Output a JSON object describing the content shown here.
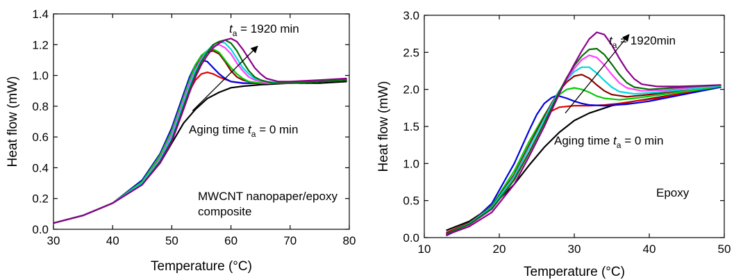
{
  "chart_data": [
    {
      "type": "line",
      "xlabel": "Temperature (°C)",
      "ylabel": "Heat flow (mW)",
      "xlim": [
        30,
        80
      ],
      "ylim": [
        0,
        1.4
      ],
      "xticks": [
        "30",
        "40",
        "50",
        "60",
        "70",
        "80"
      ],
      "yticks": [
        "0.0",
        "0.2",
        "0.4",
        "0.6",
        "0.8",
        "1.0",
        "1.2",
        "1.4"
      ],
      "grid": false,
      "legend": "none",
      "annotations": {
        "top": {
          "prefix": "",
          "italic": "t",
          "sub": "a",
          "suffix": " = 1920 min"
        },
        "bottom": {
          "prefix": "Aging time ",
          "italic": "t",
          "sub": "a",
          "suffix": " = 0 min"
        },
        "label_line1": "MWCNT nanopaper/epoxy",
        "label_line2": "composite"
      },
      "arrow": {
        "from": [
          53.5,
          0.77
        ],
        "to": [
          64.5,
          1.19
        ]
      },
      "series": [
        {
          "color": "#000000",
          "x": [
            30,
            35,
            40,
            45,
            48,
            50,
            52,
            54,
            56,
            58,
            60,
            62,
            65,
            70,
            75,
            79.5
          ],
          "y": [
            0.04,
            0.09,
            0.17,
            0.3,
            0.43,
            0.56,
            0.69,
            0.78,
            0.85,
            0.89,
            0.92,
            0.93,
            0.94,
            0.95,
            0.95,
            0.96
          ]
        },
        {
          "color": "#e00000",
          "x": [
            30,
            35,
            40,
            45,
            48,
            50,
            52,
            53,
            54,
            55,
            56,
            57,
            58,
            60,
            62,
            65,
            70,
            75,
            79.5
          ],
          "y": [
            0.04,
            0.09,
            0.17,
            0.31,
            0.46,
            0.61,
            0.8,
            0.9,
            0.97,
            1.01,
            1.02,
            1.01,
            0.99,
            0.96,
            0.95,
            0.95,
            0.95,
            0.96,
            0.97
          ]
        },
        {
          "color": "#0000e0",
          "x": [
            30,
            35,
            40,
            45,
            48,
            50,
            52,
            53,
            54,
            55,
            56,
            57,
            58,
            59,
            60,
            62,
            64,
            65,
            70,
            75,
            79.5
          ],
          "y": [
            0.04,
            0.09,
            0.17,
            0.32,
            0.49,
            0.66,
            0.88,
            0.99,
            1.07,
            1.1,
            1.09,
            1.05,
            1.01,
            0.98,
            0.96,
            0.95,
            0.95,
            0.95,
            0.95,
            0.96,
            0.97
          ]
        },
        {
          "color": "#8b0000",
          "x": [
            30,
            35,
            40,
            45,
            48,
            50,
            52,
            53,
            54,
            55,
            56,
            57,
            58,
            59,
            60,
            61,
            62,
            64,
            66,
            70,
            75,
            79.5
          ],
          "y": [
            0.04,
            0.09,
            0.17,
            0.31,
            0.48,
            0.64,
            0.86,
            0.97,
            1.06,
            1.12,
            1.15,
            1.16,
            1.14,
            1.09,
            1.03,
            0.99,
            0.97,
            0.95,
            0.95,
            0.95,
            0.96,
            0.97
          ]
        },
        {
          "color": "#00cc00",
          "x": [
            30,
            35,
            40,
            45,
            48,
            50,
            52,
            53,
            54,
            55,
            56,
            57,
            58,
            59,
            60,
            61,
            62,
            63,
            65,
            66,
            70,
            75,
            79.5
          ],
          "y": [
            0.04,
            0.09,
            0.17,
            0.31,
            0.48,
            0.64,
            0.86,
            0.97,
            1.07,
            1.13,
            1.16,
            1.17,
            1.15,
            1.1,
            1.05,
            1.01,
            0.98,
            0.96,
            0.95,
            0.95,
            0.95,
            0.96,
            0.97
          ]
        },
        {
          "color": "#ff40ff",
          "x": [
            30,
            35,
            40,
            45,
            48,
            50,
            52,
            53,
            54,
            55,
            56,
            57,
            58,
            59,
            60,
            61,
            62,
            63,
            64,
            66,
            70,
            75,
            79.5
          ],
          "y": [
            0.04,
            0.09,
            0.17,
            0.3,
            0.46,
            0.62,
            0.84,
            0.95,
            1.04,
            1.11,
            1.16,
            1.19,
            1.2,
            1.18,
            1.14,
            1.08,
            1.03,
            0.99,
            0.97,
            0.95,
            0.95,
            0.96,
            0.97
          ]
        },
        {
          "color": "#00d8e0",
          "x": [
            30,
            35,
            40,
            45,
            48,
            50,
            52,
            53,
            54,
            55,
            56,
            57,
            58,
            59,
            60,
            61,
            62,
            63,
            64,
            66,
            70,
            75,
            79.5
          ],
          "y": [
            0.04,
            0.09,
            0.17,
            0.3,
            0.45,
            0.6,
            0.82,
            0.93,
            1.03,
            1.1,
            1.16,
            1.2,
            1.22,
            1.21,
            1.17,
            1.11,
            1.05,
            1.01,
            0.98,
            0.96,
            0.95,
            0.96,
            0.97
          ]
        },
        {
          "color": "#007000",
          "x": [
            30,
            35,
            40,
            45,
            48,
            50,
            52,
            53,
            54,
            55,
            56,
            57,
            58,
            59,
            60,
            61,
            62,
            63,
            64,
            65,
            67,
            70,
            75,
            79.5
          ],
          "y": [
            0.04,
            0.09,
            0.17,
            0.29,
            0.44,
            0.58,
            0.8,
            0.91,
            1.01,
            1.09,
            1.15,
            1.2,
            1.22,
            1.23,
            1.21,
            1.16,
            1.09,
            1.03,
            0.99,
            0.97,
            0.95,
            0.95,
            0.96,
            0.97
          ]
        },
        {
          "color": "#8b008b",
          "x": [
            30,
            35,
            40,
            45,
            48,
            50,
            52,
            53,
            54,
            55,
            56,
            57,
            58,
            59,
            60,
            61,
            62,
            63,
            64,
            65,
            66,
            68,
            70,
            75,
            79.5
          ],
          "y": [
            0.04,
            0.09,
            0.17,
            0.29,
            0.43,
            0.57,
            0.78,
            0.89,
            0.99,
            1.07,
            1.13,
            1.18,
            1.21,
            1.23,
            1.24,
            1.22,
            1.17,
            1.11,
            1.05,
            1.01,
            0.98,
            0.96,
            0.96,
            0.97,
            0.98
          ]
        }
      ]
    },
    {
      "type": "line",
      "xlabel": "Temperature (°C)",
      "ylabel": "Heat flow (mW)",
      "xlim": [
        10,
        50
      ],
      "ylim": [
        0,
        3.0
      ],
      "xticks": [
        "10",
        "20",
        "30",
        "40",
        "50"
      ],
      "yticks": [
        "0.0",
        "0.5",
        "1.0",
        "1.5",
        "2.0",
        "2.5",
        "3.0"
      ],
      "grid": false,
      "legend": "none",
      "annotations": {
        "top": {
          "prefix": "",
          "italic": "t",
          "sub": "a",
          "suffix": " = 1920min"
        },
        "bottom": {
          "prefix": "Aging time ",
          "italic": "t",
          "sub": "a",
          "suffix": " = 0 min"
        },
        "label_line1": "Epoxy",
        "label_line2": ""
      },
      "arrow": {
        "from": [
          28.8,
          1.68
        ],
        "to": [
          37.3,
          2.74
        ]
      },
      "series": [
        {
          "color": "#000000",
          "x": [
            13,
            16,
            19,
            22,
            24,
            26,
            28,
            30,
            32,
            35,
            38,
            41,
            44,
            47,
            49.5
          ],
          "y": [
            0.1,
            0.22,
            0.42,
            0.72,
            0.98,
            1.22,
            1.42,
            1.58,
            1.68,
            1.78,
            1.84,
            1.89,
            1.94,
            1.99,
            2.03
          ]
        },
        {
          "color": "#e00000",
          "x": [
            13,
            16,
            19,
            22,
            24,
            25,
            26,
            27,
            28,
            30,
            32,
            34,
            36,
            38,
            41,
            44,
            47,
            49.5
          ],
          "y": [
            0.07,
            0.2,
            0.42,
            0.82,
            1.22,
            1.43,
            1.6,
            1.71,
            1.76,
            1.78,
            1.78,
            1.79,
            1.81,
            1.84,
            1.88,
            1.94,
            1.99,
            2.03
          ]
        },
        {
          "color": "#0000e0",
          "x": [
            13,
            16,
            19,
            22,
            24,
            25,
            26,
            27,
            27.5,
            28,
            29,
            30,
            31,
            32,
            34,
            37,
            40,
            43,
            46,
            49.5
          ],
          "y": [
            0.03,
            0.18,
            0.46,
            1.0,
            1.45,
            1.66,
            1.81,
            1.89,
            1.91,
            1.91,
            1.88,
            1.84,
            1.81,
            1.79,
            1.78,
            1.8,
            1.84,
            1.9,
            1.96,
            2.03
          ]
        },
        {
          "color": "#00cc00",
          "x": [
            13,
            16,
            19,
            22,
            24,
            26,
            27,
            28,
            29,
            30,
            31,
            32,
            33,
            34,
            36,
            38,
            41,
            44,
            47,
            49.5
          ],
          "y": [
            0.05,
            0.19,
            0.43,
            0.9,
            1.3,
            1.65,
            1.81,
            1.93,
            2.0,
            2.02,
            2.0,
            1.96,
            1.91,
            1.88,
            1.86,
            1.88,
            1.92,
            1.96,
            2.0,
            2.04
          ]
        },
        {
          "color": "#8b0000",
          "x": [
            13,
            16,
            19,
            22,
            24,
            26,
            27,
            28,
            29,
            30,
            31,
            32,
            33,
            34,
            35,
            37,
            40,
            43,
            46,
            49.5
          ],
          "y": [
            0.06,
            0.2,
            0.42,
            0.85,
            1.25,
            1.63,
            1.82,
            1.98,
            2.1,
            2.18,
            2.2,
            2.15,
            2.06,
            1.98,
            1.93,
            1.9,
            1.93,
            1.97,
            2.01,
            2.05
          ]
        },
        {
          "color": "#00d8e0",
          "x": [
            13,
            16,
            19,
            22,
            24,
            26,
            27,
            28,
            29,
            30,
            31,
            32,
            33,
            34,
            35,
            36,
            38,
            41,
            44,
            47,
            49.5
          ],
          "y": [
            0.05,
            0.19,
            0.41,
            0.83,
            1.22,
            1.6,
            1.8,
            1.98,
            2.13,
            2.24,
            2.3,
            2.3,
            2.22,
            2.12,
            2.03,
            1.97,
            1.94,
            1.96,
            1.99,
            2.02,
            2.05
          ]
        },
        {
          "color": "#ff40ff",
          "x": [
            13,
            16,
            19,
            22,
            24,
            26,
            27,
            28,
            29,
            30,
            31,
            32,
            33,
            34,
            35,
            36,
            37,
            39,
            42,
            45,
            49.5
          ],
          "y": [
            0.04,
            0.17,
            0.38,
            0.78,
            1.16,
            1.55,
            1.76,
            1.96,
            2.14,
            2.28,
            2.4,
            2.46,
            2.43,
            2.33,
            2.2,
            2.09,
            2.02,
            1.98,
            1.99,
            2.02,
            2.06
          ]
        },
        {
          "color": "#007000",
          "x": [
            13,
            16,
            19,
            22,
            24,
            26,
            27,
            28,
            29,
            30,
            31,
            32,
            33,
            34,
            35,
            36,
            37,
            38,
            40,
            43,
            46,
            49.5
          ],
          "y": [
            0.05,
            0.18,
            0.39,
            0.78,
            1.15,
            1.55,
            1.76,
            1.97,
            2.16,
            2.32,
            2.45,
            2.54,
            2.55,
            2.47,
            2.34,
            2.2,
            2.09,
            2.03,
            2.0,
            2.02,
            2.04,
            2.06
          ]
        },
        {
          "color": "#8b008b",
          "x": [
            13,
            16,
            19,
            22,
            24,
            26,
            27,
            28,
            29,
            30,
            31,
            32,
            33,
            34,
            35,
            36,
            37,
            38,
            39,
            41,
            44,
            47,
            49.5
          ],
          "y": [
            0.04,
            0.15,
            0.34,
            0.72,
            1.1,
            1.5,
            1.72,
            1.94,
            2.15,
            2.34,
            2.52,
            2.68,
            2.77,
            2.74,
            2.6,
            2.42,
            2.26,
            2.14,
            2.07,
            2.04,
            2.04,
            2.05,
            2.06
          ]
        }
      ]
    }
  ]
}
